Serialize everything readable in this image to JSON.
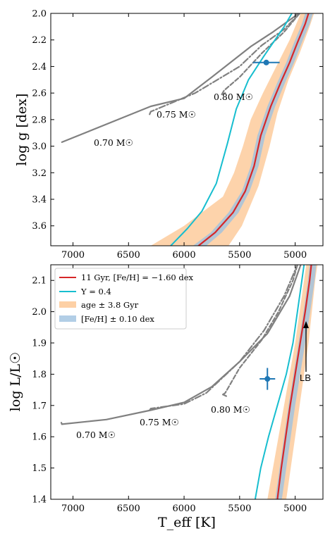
{
  "chart_data": [
    {
      "type": "line",
      "panel": "top",
      "ylabel": "log g [dex]",
      "xlabel": "",
      "xlim": [
        7200,
        4750
      ],
      "ylim": [
        3.75,
        2.0
      ],
      "x_ticks": [
        7000,
        6500,
        6000,
        5500,
        5000
      ],
      "y_ticks": [
        2.0,
        2.2,
        2.4,
        2.6,
        2.8,
        3.0,
        3.2,
        3.4,
        3.6
      ],
      "y_tick_labels": [
        "2.0",
        "2.2",
        "2.4",
        "2.6",
        "2.8",
        "3.0",
        "3.2",
        "3.4",
        "3.6"
      ],
      "annotations": [
        "0.70 M☉",
        "0.75 M☉",
        "0.80 M☉"
      ],
      "series": [
        {
          "key": "m070",
          "style": "solid-gray",
          "points": [
            [
              7100,
              2.97
            ],
            [
              6300,
              2.7
            ],
            [
              6000,
              2.64
            ],
            [
              5750,
              2.48
            ],
            [
              5400,
              2.25
            ],
            [
              5200,
              2.14
            ],
            [
              5000,
              2.02
            ],
            [
              4980,
              2.0
            ]
          ]
        },
        {
          "key": "m075",
          "style": "dashdot-gray",
          "points": [
            [
              6310,
              2.76
            ],
            [
              6300,
              2.74
            ],
            [
              5900,
              2.6
            ],
            [
              5500,
              2.4
            ],
            [
              5300,
              2.24
            ],
            [
              5100,
              2.12
            ],
            [
              4960,
              2.0
            ]
          ]
        },
        {
          "key": "m080",
          "style": "dashed-gray",
          "points": [
            [
              5660,
              2.61
            ],
            [
              5640,
              2.58
            ],
            [
              5500,
              2.48
            ],
            [
              5300,
              2.3
            ],
            [
              5100,
              2.14
            ],
            [
              4960,
              2.0
            ]
          ]
        },
        {
          "key": "m080b",
          "style": "dashed-gray",
          "points": [
            [
              5660,
              2.61
            ],
            [
              5630,
              2.6
            ]
          ]
        },
        {
          "key": "isochrone",
          "style": "red",
          "points": [
            [
              5870,
              3.75
            ],
            [
              5720,
              3.65
            ],
            [
              5560,
              3.5
            ],
            [
              5450,
              3.34
            ],
            [
              5370,
              3.15
            ],
            [
              5310,
              2.92
            ],
            [
              5220,
              2.7
            ],
            [
              5130,
              2.52
            ],
            [
              5050,
              2.37
            ],
            [
              4980,
              2.22
            ],
            [
              4910,
              2.08
            ],
            [
              4880,
              2.0
            ]
          ]
        },
        {
          "key": "helium",
          "style": "cyan",
          "points": [
            [
              6120,
              3.75
            ],
            [
              5970,
              3.62
            ],
            [
              5840,
              3.49
            ],
            [
              5710,
              3.28
            ],
            [
              5610,
              2.98
            ],
            [
              5530,
              2.72
            ],
            [
              5420,
              2.5
            ],
            [
              5280,
              2.32
            ],
            [
              5100,
              2.1
            ],
            [
              5030,
              2.0
            ]
          ]
        },
        {
          "key": "star",
          "style": "marker",
          "points": [
            [
              5260,
              2.37
            ]
          ],
          "x_err": 120,
          "y_err": 0.02
        }
      ],
      "bands": [
        {
          "key": "age",
          "style": "orange",
          "upper": [
            [
              6300,
              3.75
            ],
            [
              6000,
              3.6
            ],
            [
              5650,
              3.38
            ],
            [
              5550,
              3.2
            ],
            [
              5470,
              3.0
            ],
            [
              5400,
              2.8
            ],
            [
              5290,
              2.6
            ],
            [
              5170,
              2.4
            ],
            [
              5050,
              2.2
            ],
            [
              4950,
              2.0
            ]
          ],
          "lower": [
            [
              5600,
              3.75
            ],
            [
              5480,
              3.6
            ],
            [
              5330,
              3.3
            ],
            [
              5230,
              3.0
            ],
            [
              5160,
              2.75
            ],
            [
              5060,
              2.5
            ],
            [
              4960,
              2.3
            ],
            [
              4870,
              2.1
            ],
            [
              4830,
              2.0
            ]
          ]
        },
        {
          "key": "feh",
          "style": "blue",
          "upper": [
            [
              5920,
              3.75
            ],
            [
              5760,
              3.65
            ],
            [
              5600,
              3.5
            ],
            [
              5480,
              3.34
            ],
            [
              5400,
              3.15
            ],
            [
              5340,
              2.92
            ],
            [
              5250,
              2.7
            ],
            [
              5160,
              2.52
            ],
            [
              5080,
              2.37
            ],
            [
              5010,
              2.22
            ],
            [
              4940,
              2.08
            ],
            [
              4910,
              2.0
            ]
          ],
          "lower": [
            [
              5800,
              3.75
            ],
            [
              5660,
              3.65
            ],
            [
              5510,
              3.5
            ],
            [
              5410,
              3.34
            ],
            [
              5330,
              3.15
            ],
            [
              5270,
              2.92
            ],
            [
              5180,
              2.7
            ],
            [
              5090,
              2.52
            ],
            [
              5010,
              2.37
            ],
            [
              4940,
              2.22
            ],
            [
              4870,
              2.08
            ],
            [
              4840,
              2.0
            ]
          ]
        }
      ]
    },
    {
      "type": "line",
      "panel": "bottom",
      "ylabel": "log L/L☉",
      "xlabel": "T_eff [K]",
      "xlim": [
        7200,
        4750
      ],
      "ylim": [
        1.4,
        2.15
      ],
      "x_ticks": [
        7000,
        6500,
        6000,
        5500,
        5000
      ],
      "y_ticks": [
        1.4,
        1.5,
        1.6,
        1.7,
        1.8,
        1.9,
        2.0,
        2.1
      ],
      "y_tick_labels": [
        "1.4",
        "1.5",
        "1.6",
        "1.7",
        "1.8",
        "1.9",
        "2.0",
        "2.1"
      ],
      "annotations": [
        "0.70 M☉",
        "0.75 M☉",
        "0.80 M☉",
        "LB"
      ],
      "legend": {
        "placement": "top-left",
        "entries": [
          "11 Gyr, [Fe/H] = −1.60 dex",
          "Y = 0.4",
          "age ± 3.8 Gyr",
          "[Fe/H] ± 0.10 dex"
        ]
      },
      "series": [
        {
          "key": "m070",
          "style": "solid-gray",
          "points": [
            [
              7100,
              1.64
            ],
            [
              6700,
              1.655
            ],
            [
              6300,
              1.685
            ],
            [
              6000,
              1.71
            ],
            [
              5750,
              1.76
            ],
            [
              5500,
              1.84
            ],
            [
              5250,
              1.93
            ],
            [
              5050,
              2.05
            ],
            [
              4950,
              2.15
            ]
          ]
        },
        {
          "key": "m070-tick",
          "style": "solid-gray",
          "points": [
            [
              7100,
              1.64
            ],
            [
              7105,
              1.645
            ]
          ]
        },
        {
          "key": "m075",
          "style": "dashdot-gray",
          "points": [
            [
              6310,
              1.685
            ],
            [
              6300,
              1.69
            ],
            [
              6000,
              1.705
            ],
            [
              5800,
              1.74
            ],
            [
              5500,
              1.84
            ],
            [
              5280,
              1.94
            ],
            [
              5100,
              2.05
            ],
            [
              4980,
              2.15
            ]
          ]
        },
        {
          "key": "m080",
          "style": "dashed-gray",
          "points": [
            [
              5650,
              1.735
            ],
            [
              5630,
              1.74
            ],
            [
              5500,
              1.82
            ],
            [
              5300,
              1.91
            ],
            [
              5150,
              2.0
            ],
            [
              5020,
              2.1
            ],
            [
              4980,
              2.15
            ]
          ]
        },
        {
          "key": "m080b",
          "style": "dashed-gray",
          "points": [
            [
              5650,
              1.735
            ],
            [
              5620,
              1.73
            ]
          ]
        },
        {
          "key": "isochrone",
          "style": "red",
          "points": [
            [
              5160,
              1.4
            ],
            [
              5125,
              1.5
            ],
            [
              5085,
              1.6
            ],
            [
              5045,
              1.7
            ],
            [
              5000,
              1.8
            ],
            [
              4955,
              1.9
            ],
            [
              4910,
              2.0
            ],
            [
              4870,
              2.1
            ],
            [
              4855,
              2.15
            ]
          ]
        },
        {
          "key": "helium",
          "style": "cyan",
          "points": [
            [
              5360,
              1.4
            ],
            [
              5310,
              1.5
            ],
            [
              5240,
              1.6
            ],
            [
              5160,
              1.7
            ],
            [
              5080,
              1.8
            ],
            [
              5020,
              1.9
            ],
            [
              4980,
              2.0
            ],
            [
              4940,
              2.1
            ],
            [
              4920,
              2.15
            ]
          ]
        },
        {
          "key": "star",
          "style": "marker",
          "points": [
            [
              5250,
              1.785
            ]
          ],
          "x_err": 70,
          "y_err": 0.035
        }
      ],
      "bands": [
        {
          "key": "age",
          "style": "orange",
          "upper": [
            [
              5250,
              1.4
            ],
            [
              5200,
              1.5
            ],
            [
              5150,
              1.6
            ],
            [
              5100,
              1.7
            ],
            [
              5050,
              1.8
            ],
            [
              5000,
              1.9
            ],
            [
              4960,
              2.0
            ],
            [
              4920,
              2.1
            ],
            [
              4900,
              2.15
            ]
          ],
          "lower": [
            [
              5080,
              1.4
            ],
            [
              5040,
              1.5
            ],
            [
              5000,
              1.6
            ],
            [
              4960,
              1.7
            ],
            [
              4920,
              1.8
            ],
            [
              4880,
              1.9
            ],
            [
              4850,
              2.0
            ],
            [
              4820,
              2.1
            ],
            [
              4800,
              2.15
            ]
          ]
        },
        {
          "key": "feh",
          "style": "blue",
          "upper": [
            [
              5180,
              1.4
            ],
            [
              5140,
              1.5
            ],
            [
              5100,
              1.6
            ],
            [
              5060,
              1.7
            ],
            [
              5015,
              1.8
            ],
            [
              4970,
              1.9
            ],
            [
              4925,
              2.0
            ],
            [
              4885,
              2.1
            ],
            [
              4870,
              2.15
            ]
          ],
          "lower": [
            [
              5120,
              1.4
            ],
            [
              5080,
              1.5
            ],
            [
              5040,
              1.6
            ],
            [
              5000,
              1.7
            ],
            [
              4955,
              1.8
            ],
            [
              4910,
              1.9
            ],
            [
              4865,
              2.0
            ],
            [
              4825,
              2.1
            ],
            [
              4810,
              2.15
            ]
          ]
        }
      ]
    }
  ],
  "colors": {
    "gray": "#808080",
    "red": "#d62728",
    "cyan": "#17becf",
    "orange_band": "#fcc48f",
    "blue_band": "#9fc2e0",
    "marker": "#1f77b4"
  }
}
